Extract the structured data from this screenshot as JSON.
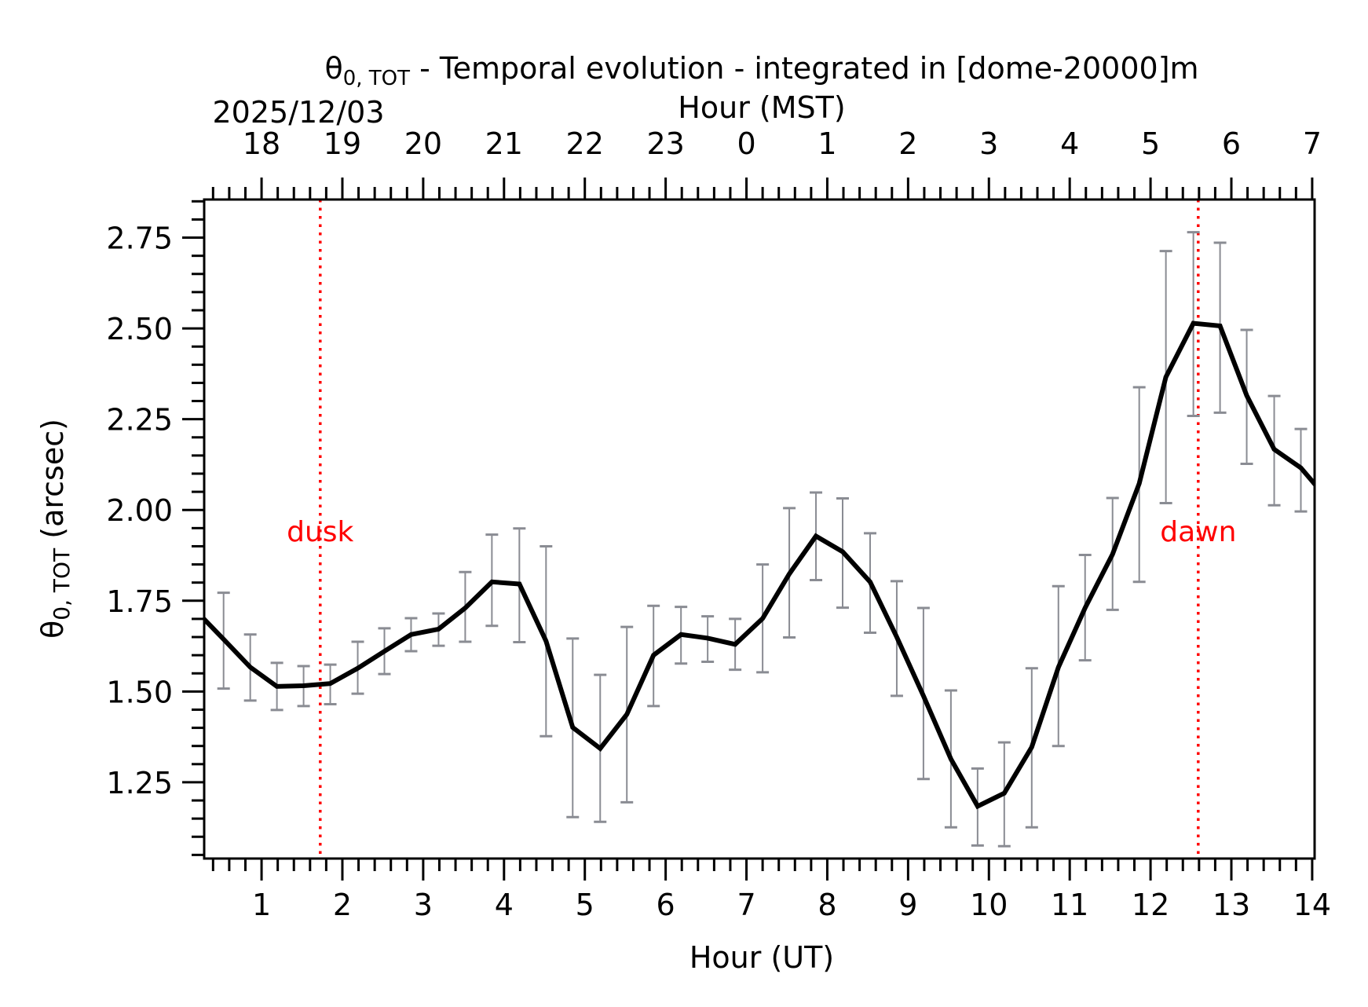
{
  "chart_data": {
    "type": "line",
    "title": "θ0,TOT - Temporal evolution - integrated in [dome-20000]m",
    "title_parts": {
      "symbol": "θ",
      "sub": "0, TOT",
      "rest": " - Temporal evolution - integrated in [dome-20000]m"
    },
    "date_label": "2025/12/03",
    "xlabel": "Hour (UT)",
    "x2label": "Hour (MST)",
    "ylabel": "θ0,TOT (arcsec)",
    "ylabel_parts": {
      "symbol": "θ",
      "sub": "0, TOT",
      "rest": " (arcsec)"
    },
    "xlim": [
      0.29,
      14.03
    ],
    "ylim": [
      1.04,
      2.855
    ],
    "x_ticks": [
      1,
      2,
      3,
      4,
      5,
      6,
      7,
      8,
      9,
      10,
      11,
      12,
      13,
      14
    ],
    "x_tick_labels": [
      "1",
      "2",
      "3",
      "4",
      "5",
      "6",
      "7",
      "8",
      "9",
      "10",
      "11",
      "12",
      "13",
      "14"
    ],
    "x2_ticks": [
      1,
      2,
      3,
      4,
      5,
      6,
      7,
      8,
      9,
      10,
      11,
      12,
      13,
      14
    ],
    "x2_tick_labels": [
      "18",
      "19",
      "20",
      "21",
      "22",
      "23",
      "0",
      "1",
      "2",
      "3",
      "4",
      "5",
      "6",
      "7"
    ],
    "x_minor_step": 0.2,
    "y_ticks": [
      1.25,
      1.5,
      1.75,
      2.0,
      2.25,
      2.5,
      2.75
    ],
    "y_tick_labels": [
      "1.25",
      "1.50",
      "1.75",
      "2.00",
      "2.25",
      "2.50",
      "2.75"
    ],
    "y_minor_step": 0.05,
    "grid": false,
    "series": [
      {
        "name": "θ0,TOT",
        "color": "#000000",
        "x": [
          0.2,
          0.53,
          0.86,
          1.19,
          1.52,
          1.85,
          2.19,
          2.52,
          2.85,
          3.19,
          3.52,
          3.85,
          4.19,
          4.52,
          4.85,
          5.19,
          5.52,
          5.85,
          6.19,
          6.52,
          6.86,
          7.2,
          7.53,
          7.86,
          8.19,
          8.53,
          8.86,
          9.19,
          9.53,
          9.86,
          10.19,
          10.53,
          10.86,
          11.19,
          11.53,
          11.86,
          12.19,
          12.53,
          12.86,
          13.19,
          13.53,
          13.86,
          14.19
        ],
        "y": [
          1.72,
          1.644,
          1.567,
          1.514,
          1.516,
          1.522,
          1.564,
          1.611,
          1.657,
          1.672,
          1.73,
          1.802,
          1.796,
          1.639,
          1.401,
          1.343,
          1.437,
          1.6,
          1.657,
          1.647,
          1.63,
          1.701,
          1.824,
          1.928,
          1.885,
          1.802,
          1.65,
          1.488,
          1.314,
          1.184,
          1.22,
          1.347,
          1.567,
          1.73,
          1.878,
          2.073,
          2.366,
          2.514,
          2.507,
          2.315,
          2.167,
          2.116,
          2.03
        ],
        "err_low": [
          null,
          1.508,
          1.475,
          1.449,
          1.46,
          1.465,
          1.494,
          1.548,
          1.611,
          1.626,
          1.637,
          1.681,
          1.636,
          1.377,
          1.154,
          1.141,
          1.195,
          1.46,
          1.577,
          1.582,
          1.56,
          1.553,
          1.649,
          1.807,
          1.731,
          1.662,
          1.488,
          1.259,
          1.126,
          1.076,
          1.074,
          1.126,
          1.35,
          1.586,
          1.725,
          1.802,
          2.019,
          2.259,
          2.268,
          2.127,
          2.013,
          1.996,
          null
        ],
        "err_high": [
          null,
          1.772,
          1.657,
          1.579,
          1.57,
          1.574,
          1.637,
          1.674,
          1.702,
          1.715,
          1.829,
          1.932,
          1.949,
          1.9,
          1.646,
          1.546,
          1.678,
          1.736,
          1.733,
          1.707,
          1.7,
          1.85,
          2.005,
          2.048,
          2.032,
          1.936,
          1.804,
          1.73,
          1.503,
          1.288,
          1.36,
          1.564,
          1.79,
          1.876,
          2.033,
          2.338,
          2.713,
          2.765,
          2.736,
          2.496,
          2.314,
          2.223,
          null
        ],
        "errorbar_color": "#8a8c93"
      }
    ],
    "annotations": [
      {
        "label": "dusk",
        "x": 1.726,
        "y": 1.94,
        "color": "#ff0000",
        "line": "vertical-dotted"
      },
      {
        "label": "dawn",
        "x": 12.59,
        "y": 1.94,
        "color": "#ff0000",
        "line": "vertical-dotted"
      }
    ]
  }
}
